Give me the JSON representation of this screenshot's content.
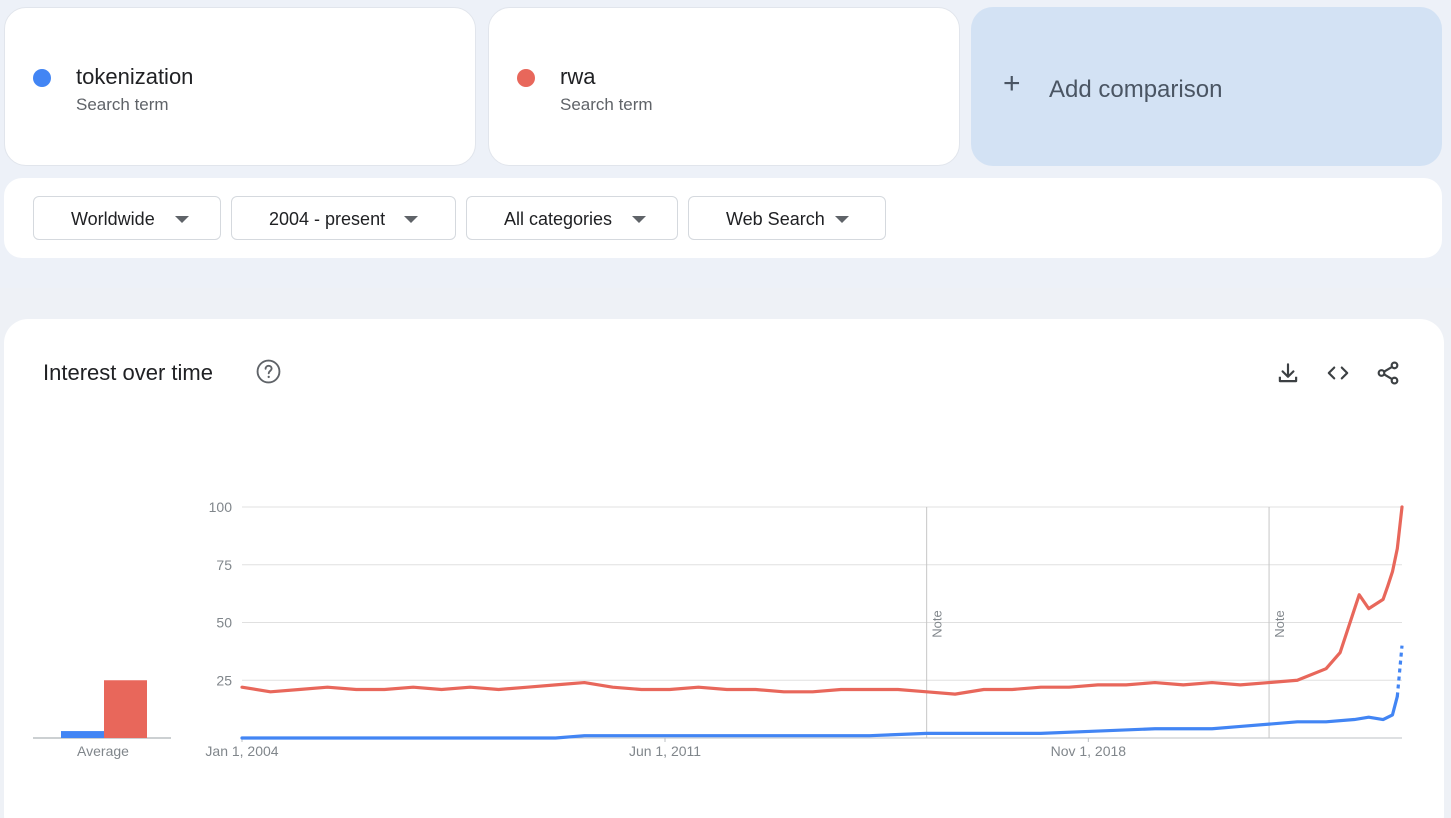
{
  "terms": [
    {
      "name": "tokenization",
      "subtitle": "Search term",
      "color": "#4285f4"
    },
    {
      "name": "rwa",
      "subtitle": "Search term",
      "color": "#e8675b"
    }
  ],
  "add_comparison": {
    "label": "Add comparison",
    "icon": "plus-icon"
  },
  "filters": {
    "region": "Worldwide",
    "time_range": "2004 - present",
    "category": "All categories",
    "property": "Web Search"
  },
  "chart_section": {
    "title": "Interest over time",
    "help_icon": "help-circle-icon",
    "actions": [
      "download-icon",
      "embed-code-icon",
      "share-icon"
    ]
  },
  "chart_data": [
    {
      "type": "bar",
      "categories": [
        "Average"
      ],
      "series": [
        {
          "name": "tokenization",
          "color": "#4285f4",
          "values": [
            3
          ]
        },
        {
          "name": "rwa",
          "color": "#e8675b",
          "values": [
            25
          ]
        }
      ],
      "ylim": [
        0,
        100
      ]
    },
    {
      "type": "line",
      "x_axis": {
        "type": "date",
        "range": [
          "2004-01-01",
          "2024-05-01"
        ],
        "tick_labels": [
          "Jan 1, 2004",
          "Jun 1, 2011",
          "Nov 1, 2018"
        ]
      },
      "y_axis": {
        "range": [
          0,
          100
        ],
        "ticks": [
          25,
          50,
          75,
          100
        ]
      },
      "grid": true,
      "notes": [
        {
          "date": "2016-01-01",
          "label": "Note"
        },
        {
          "date": "2022-01-01",
          "label": "Note"
        }
      ],
      "series": [
        {
          "name": "rwa",
          "color": "#e8675b",
          "points": [
            [
              "2004-01-01",
              22
            ],
            [
              "2004-07-01",
              20
            ],
            [
              "2005-01-01",
              21
            ],
            [
              "2005-07-01",
              22
            ],
            [
              "2006-01-01",
              21
            ],
            [
              "2006-07-01",
              21
            ],
            [
              "2007-01-01",
              22
            ],
            [
              "2007-07-01",
              21
            ],
            [
              "2008-01-01",
              22
            ],
            [
              "2008-07-01",
              21
            ],
            [
              "2009-01-01",
              22
            ],
            [
              "2009-07-01",
              23
            ],
            [
              "2010-01-01",
              24
            ],
            [
              "2010-07-01",
              22
            ],
            [
              "2011-01-01",
              21
            ],
            [
              "2011-07-01",
              21
            ],
            [
              "2012-01-01",
              22
            ],
            [
              "2012-07-01",
              21
            ],
            [
              "2013-01-01",
              21
            ],
            [
              "2013-07-01",
              20
            ],
            [
              "2014-01-01",
              20
            ],
            [
              "2014-07-01",
              21
            ],
            [
              "2015-01-01",
              21
            ],
            [
              "2015-07-01",
              21
            ],
            [
              "2016-01-01",
              20
            ],
            [
              "2016-07-01",
              19
            ],
            [
              "2017-01-01",
              21
            ],
            [
              "2017-07-01",
              21
            ],
            [
              "2018-01-01",
              22
            ],
            [
              "2018-07-01",
              22
            ],
            [
              "2019-01-01",
              23
            ],
            [
              "2019-07-01",
              23
            ],
            [
              "2020-01-01",
              24
            ],
            [
              "2020-07-01",
              23
            ],
            [
              "2021-01-01",
              24
            ],
            [
              "2021-07-01",
              23
            ],
            [
              "2022-01-01",
              24
            ],
            [
              "2022-07-01",
              25
            ],
            [
              "2023-01-01",
              30
            ],
            [
              "2023-04-01",
              37
            ],
            [
              "2023-08-01",
              62
            ],
            [
              "2023-10-01",
              56
            ],
            [
              "2024-01-01",
              60
            ],
            [
              "2024-02-01",
              66
            ],
            [
              "2024-03-01",
              72
            ],
            [
              "2024-04-01",
              82
            ],
            [
              "2024-05-01",
              100
            ]
          ]
        },
        {
          "name": "tokenization",
          "color": "#4285f4",
          "partial_from": "2024-04-01",
          "points": [
            [
              "2004-01-01",
              0
            ],
            [
              "2006-01-01",
              0
            ],
            [
              "2008-01-01",
              0
            ],
            [
              "2009-07-01",
              0
            ],
            [
              "2010-01-01",
              1
            ],
            [
              "2012-01-01",
              1
            ],
            [
              "2014-01-01",
              1
            ],
            [
              "2015-01-01",
              1
            ],
            [
              "2016-01-01",
              2
            ],
            [
              "2017-01-01",
              2
            ],
            [
              "2018-01-01",
              2
            ],
            [
              "2019-01-01",
              3
            ],
            [
              "2020-01-01",
              4
            ],
            [
              "2021-01-01",
              4
            ],
            [
              "2021-07-01",
              5
            ],
            [
              "2022-01-01",
              6
            ],
            [
              "2022-07-01",
              7
            ],
            [
              "2023-01-01",
              7
            ],
            [
              "2023-07-01",
              8
            ],
            [
              "2023-10-01",
              9
            ],
            [
              "2024-01-01",
              8
            ],
            [
              "2024-03-01",
              10
            ],
            [
              "2024-04-01",
              18
            ],
            [
              "2024-05-01",
              40
            ]
          ]
        }
      ]
    }
  ]
}
